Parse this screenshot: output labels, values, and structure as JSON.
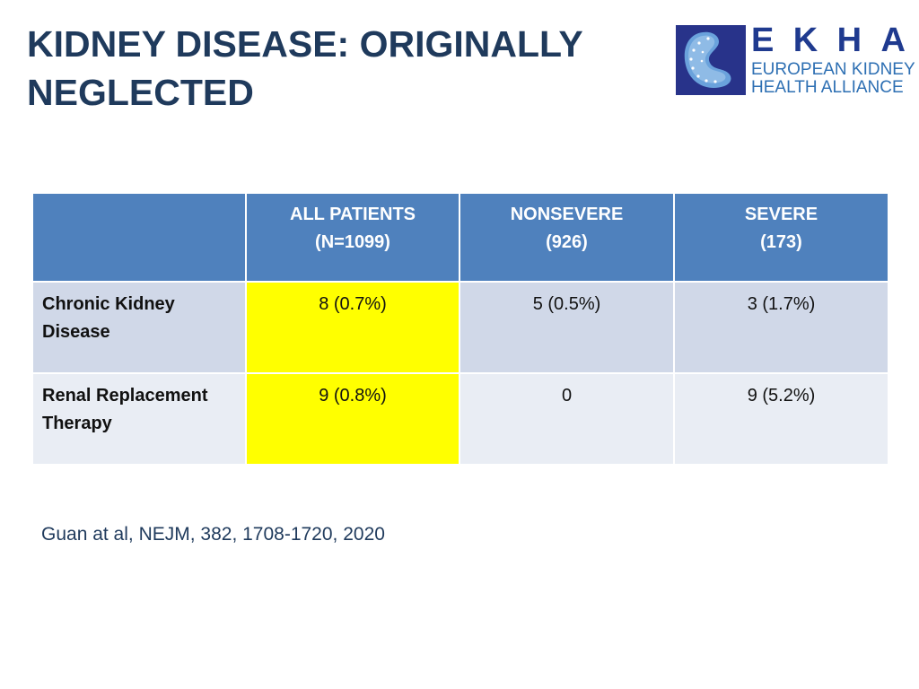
{
  "slide": {
    "title_line1": "KIDNEY DISEASE: ORIGINALLY",
    "title_line2": "NEGLECTED",
    "citation": "Guan at al, NEJM, 382, 1708-1720, 2020"
  },
  "logo": {
    "letters": [
      "E",
      "K",
      "H",
      "A"
    ],
    "line1": "EUROPEAN KIDNEY",
    "line2": "HEALTH ALLIANCE",
    "icon": "kidney-stars-icon"
  },
  "table": {
    "headers": [
      {
        "line1": "",
        "line2": ""
      },
      {
        "line1": "ALL PATIENTS",
        "line2": "(N=1099)"
      },
      {
        "line1": "NONSEVERE",
        "line2": "(926)"
      },
      {
        "line1": "SEVERE",
        "line2": "(173)"
      }
    ],
    "rows": [
      {
        "label_line1": "Chronic Kidney",
        "label_line2": "Disease",
        "all_patients": "8 (0.7%)",
        "nonsevere": "5 (0.5%)",
        "severe": "3 (1.7%)"
      },
      {
        "label_line1": "Renal Replacement",
        "label_line2": "Therapy",
        "all_patients": "9 (0.8%)",
        "nonsevere": "0",
        "severe": "9 (5.2%)"
      }
    ]
  },
  "colors": {
    "title": "#1f3a5c",
    "header_bg": "#4f81bd",
    "row_odd_bg": "#d0d8e8",
    "row_even_bg": "#e9edf4",
    "highlight": "#ffff00",
    "logo_dark": "#1f3a8f",
    "logo_light": "#2d6fb3"
  }
}
